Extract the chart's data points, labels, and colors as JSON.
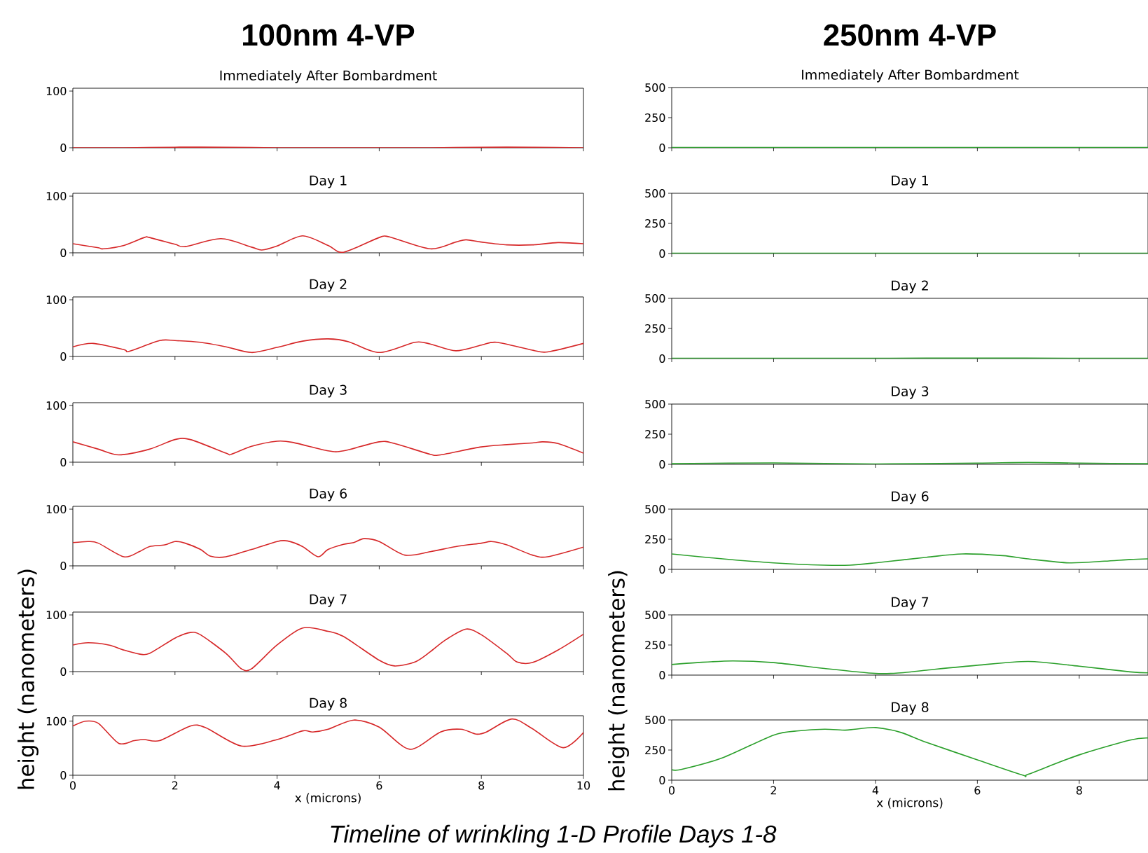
{
  "chart_data": [
    {
      "type": "line",
      "title": "100nm 4-VP",
      "subtitle": "Immediately After Bombardment",
      "color": "#d62728",
      "x": [
        0,
        1,
        2,
        3,
        4,
        5,
        6,
        7,
        8,
        9,
        10
      ],
      "values": [
        0,
        0,
        1,
        1,
        0,
        0,
        0,
        0,
        1,
        1,
        0
      ],
      "xlim": [
        0,
        10
      ],
      "ylim": [
        0,
        105
      ],
      "xticks": [
        0,
        2,
        4,
        6,
        8,
        10
      ],
      "yticks": [
        0,
        100
      ],
      "tick_labels": "y"
    },
    {
      "type": "line",
      "title": "250nm 4-VP",
      "subtitle": "Immediately After Bombardment",
      "color": "#2ca02c",
      "x": [
        0,
        2,
        4,
        6,
        8,
        9.35
      ],
      "values": [
        3,
        3,
        3,
        3,
        3,
        3
      ],
      "xlim": [
        0,
        9.35
      ],
      "ylim": [
        0,
        500
      ],
      "xticks": [
        0,
        2,
        4,
        6,
        8
      ],
      "yticks": [
        0,
        250,
        500
      ],
      "tick_labels": "y"
    },
    {
      "type": "line",
      "title": "Day 1",
      "color": "#d62728",
      "x": [
        0,
        0.5,
        0.6,
        1,
        1.4,
        1.5,
        2,
        2.2,
        2.9,
        3.5,
        3.7,
        4,
        4.5,
        5,
        5.3,
        6,
        6.2,
        7,
        7.5,
        7.7,
        8,
        8.5,
        9,
        9.5,
        10
      ],
      "values": [
        16,
        9,
        7,
        13,
        27,
        27,
        15,
        11,
        25,
        10,
        5,
        12,
        30,
        13,
        1,
        27,
        28,
        7,
        19,
        23,
        19,
        14,
        14,
        18,
        16
      ],
      "xlim": [
        0,
        10
      ],
      "ylim": [
        0,
        105
      ],
      "xticks": [
        0,
        2,
        4,
        6,
        8,
        10
      ],
      "yticks": [
        0,
        100
      ],
      "tick_labels": "y"
    },
    {
      "type": "line",
      "title": "Day 1",
      "color": "#2ca02c",
      "x": [
        0,
        2,
        4,
        6,
        8,
        9.35
      ],
      "values": [
        2,
        2,
        2,
        2,
        2,
        2
      ],
      "xlim": [
        0,
        9.35
      ],
      "ylim": [
        0,
        500
      ],
      "xticks": [
        0,
        2,
        4,
        6,
        8
      ],
      "yticks": [
        0,
        250,
        500
      ],
      "tick_labels": "y"
    },
    {
      "type": "line",
      "title": "Day 2",
      "color": "#d62728",
      "x": [
        0,
        0.4,
        1,
        1.1,
        1.7,
        2,
        2.5,
        3,
        3.5,
        4,
        4.5,
        5,
        5.4,
        6,
        6.7,
        7,
        7.5,
        8,
        8.3,
        9,
        9.3,
        10
      ],
      "values": [
        17,
        23,
        12,
        9,
        28,
        28,
        25,
        17,
        7,
        16,
        27,
        31,
        26,
        7,
        25,
        22,
        10,
        20,
        25,
        11,
        8,
        23
      ],
      "xlim": [
        0,
        10
      ],
      "ylim": [
        0,
        105
      ],
      "xticks": [
        0,
        2,
        4,
        6,
        8,
        10
      ],
      "yticks": [
        0,
        100
      ],
      "tick_labels": "y"
    },
    {
      "type": "line",
      "title": "Day 2",
      "color": "#2ca02c",
      "x": [
        0,
        2,
        4,
        6,
        8,
        9.35
      ],
      "values": [
        3,
        3,
        3,
        4,
        3,
        3
      ],
      "xlim": [
        0,
        9.35
      ],
      "ylim": [
        0,
        500
      ],
      "xticks": [
        0,
        2,
        4,
        6,
        8
      ],
      "yticks": [
        0,
        250,
        500
      ],
      "tick_labels": "y"
    },
    {
      "type": "line",
      "title": "Day 3",
      "color": "#d62728",
      "x": [
        0,
        0.5,
        0.9,
        1.5,
        2,
        2.3,
        3,
        3.1,
        3.5,
        4,
        4.3,
        5,
        5.3,
        6,
        6.3,
        7,
        7.2,
        8,
        8.5,
        9,
        9.2,
        9.5,
        10
      ],
      "values": [
        36,
        23,
        13,
        23,
        40,
        40,
        16,
        14,
        28,
        37,
        35,
        20,
        20,
        36,
        33,
        14,
        13,
        27,
        31,
        34,
        36,
        33,
        16
      ],
      "xlim": [
        0,
        10
      ],
      "ylim": [
        0,
        105
      ],
      "xticks": [
        0,
        2,
        4,
        6,
        8,
        10
      ],
      "yticks": [
        0,
        100
      ],
      "tick_labels": "y"
    },
    {
      "type": "line",
      "title": "Day 3",
      "color": "#2ca02c",
      "x": [
        0,
        2,
        4,
        6,
        7,
        8,
        9.35
      ],
      "values": [
        5,
        12,
        3,
        10,
        15,
        10,
        5
      ],
      "xlim": [
        0,
        9.35
      ],
      "ylim": [
        0,
        500
      ],
      "xticks": [
        0,
        2,
        4,
        6,
        8
      ],
      "yticks": [
        0,
        250,
        500
      ],
      "tick_labels": "y"
    },
    {
      "type": "line",
      "title": "Day 6",
      "color": "#d62728",
      "x": [
        0,
        0.3,
        0.5,
        1,
        1.3,
        1.5,
        1.8,
        2,
        2.2,
        2.5,
        2.7,
        3,
        3.5,
        4,
        4.2,
        4.5,
        4.8,
        5,
        5.3,
        5.5,
        5.7,
        6,
        6.5,
        7,
        7.5,
        8,
        8.2,
        8.5,
        9,
        9.3,
        10
      ],
      "values": [
        41,
        43,
        40,
        16,
        25,
        34,
        37,
        43,
        40,
        29,
        17,
        16,
        29,
        43,
        44,
        34,
        16,
        29,
        38,
        41,
        48,
        43,
        19,
        25,
        34,
        40,
        43,
        37,
        19,
        16,
        33
      ],
      "xlim": [
        0,
        10
      ],
      "ylim": [
        0,
        105
      ],
      "xticks": [
        0,
        2,
        4,
        6,
        8,
        10
      ],
      "yticks": [
        0,
        100
      ],
      "tick_labels": "y"
    },
    {
      "type": "line",
      "title": "Day 6",
      "color": "#2ca02c",
      "x": [
        0,
        1,
        2,
        3,
        3.5,
        4,
        5,
        5.7,
        6.5,
        7,
        7.8,
        8.5,
        9,
        9.35
      ],
      "values": [
        128,
        87,
        54,
        35,
        35,
        54,
        100,
        128,
        114,
        87,
        54,
        68,
        82,
        87
      ],
      "xlim": [
        0,
        9.35
      ],
      "ylim": [
        0,
        500
      ],
      "xticks": [
        0,
        2,
        4,
        6,
        8
      ],
      "yticks": [
        0,
        250,
        500
      ],
      "tick_labels": "y"
    },
    {
      "type": "line",
      "title": "Day 7",
      "ylabel": "height (nanometers)",
      "color": "#d62728",
      "x": [
        0,
        0.3,
        0.7,
        1,
        1.3,
        1.5,
        2,
        2.3,
        2.5,
        3,
        3.3,
        3.5,
        4,
        4.5,
        5,
        5.3,
        6,
        6.3,
        6.7,
        7,
        7.3,
        7.7,
        8,
        8.5,
        8.7,
        9,
        9.5,
        10
      ],
      "values": [
        47,
        51,
        47,
        38,
        31,
        32,
        59,
        69,
        65,
        32,
        5,
        5,
        47,
        77,
        71,
        62,
        20,
        10,
        17,
        35,
        56,
        75,
        65,
        32,
        17,
        16,
        38,
        66
      ],
      "xlim": [
        0,
        10
      ],
      "ylim": [
        0,
        105
      ],
      "xticks": [
        0,
        2,
        4,
        6,
        8,
        10
      ],
      "yticks": [
        0,
        100
      ],
      "tick_labels": "y"
    },
    {
      "type": "line",
      "title": "Day 7",
      "ylabel": "height (nanometers)",
      "color": "#2ca02c",
      "x": [
        0,
        0.5,
        1.2,
        2,
        3,
        4,
        4.5,
        5,
        6,
        7,
        8,
        9,
        9.35
      ],
      "values": [
        88,
        104,
        118,
        104,
        55,
        14,
        19,
        41,
        82,
        113,
        74,
        27,
        19
      ],
      "xlim": [
        0,
        9.35
      ],
      "ylim": [
        0,
        500
      ],
      "xticks": [
        0,
        2,
        4,
        6,
        8
      ],
      "yticks": [
        0,
        250,
        500
      ],
      "tick_labels": "y"
    },
    {
      "type": "line",
      "title": "Day 8",
      "xlabel": "x (microns)",
      "annotations": [
        "Timeline of wrinkling 1-D Profile Days 1-8"
      ],
      "color": "#d62728",
      "x": [
        0,
        0.25,
        0.5,
        0.9,
        1.2,
        1.4,
        1.7,
        2.3,
        2.6,
        3.3,
        4,
        4.5,
        4.7,
        5,
        5.5,
        6,
        6.6,
        7.2,
        7.6,
        7.9,
        8.1,
        8.6,
        9,
        9.6,
        10
      ],
      "values": [
        91,
        100,
        96,
        59,
        64,
        66,
        64,
        91,
        88,
        54,
        66,
        82,
        80,
        85,
        102,
        89,
        48,
        80,
        85,
        76,
        80,
        104,
        86,
        51,
        79
      ],
      "xlim": [
        0,
        10
      ],
      "ylim": [
        0,
        110
      ],
      "xticks": [
        0,
        2,
        4,
        6,
        8,
        10
      ],
      "yticks": [
        0,
        100
      ]
    },
    {
      "type": "line",
      "title": "Day 8",
      "xlabel": "x (microns)",
      "color": "#2ca02c",
      "x": [
        0,
        0.2,
        1,
        2,
        2.5,
        3,
        3.4,
        3.6,
        4,
        4.5,
        5,
        6,
        6.9,
        7,
        8,
        9,
        9.35
      ],
      "values": [
        87,
        90,
        186,
        374,
        410,
        423,
        415,
        423,
        437,
        396,
        314,
        169,
        41,
        49,
        210,
        333,
        350
      ],
      "xlim": [
        0,
        9.35
      ],
      "ylim": [
        0,
        500
      ],
      "xticks": [
        0,
        2,
        4,
        6,
        8
      ],
      "yticks": [
        0,
        250,
        500
      ]
    }
  ]
}
